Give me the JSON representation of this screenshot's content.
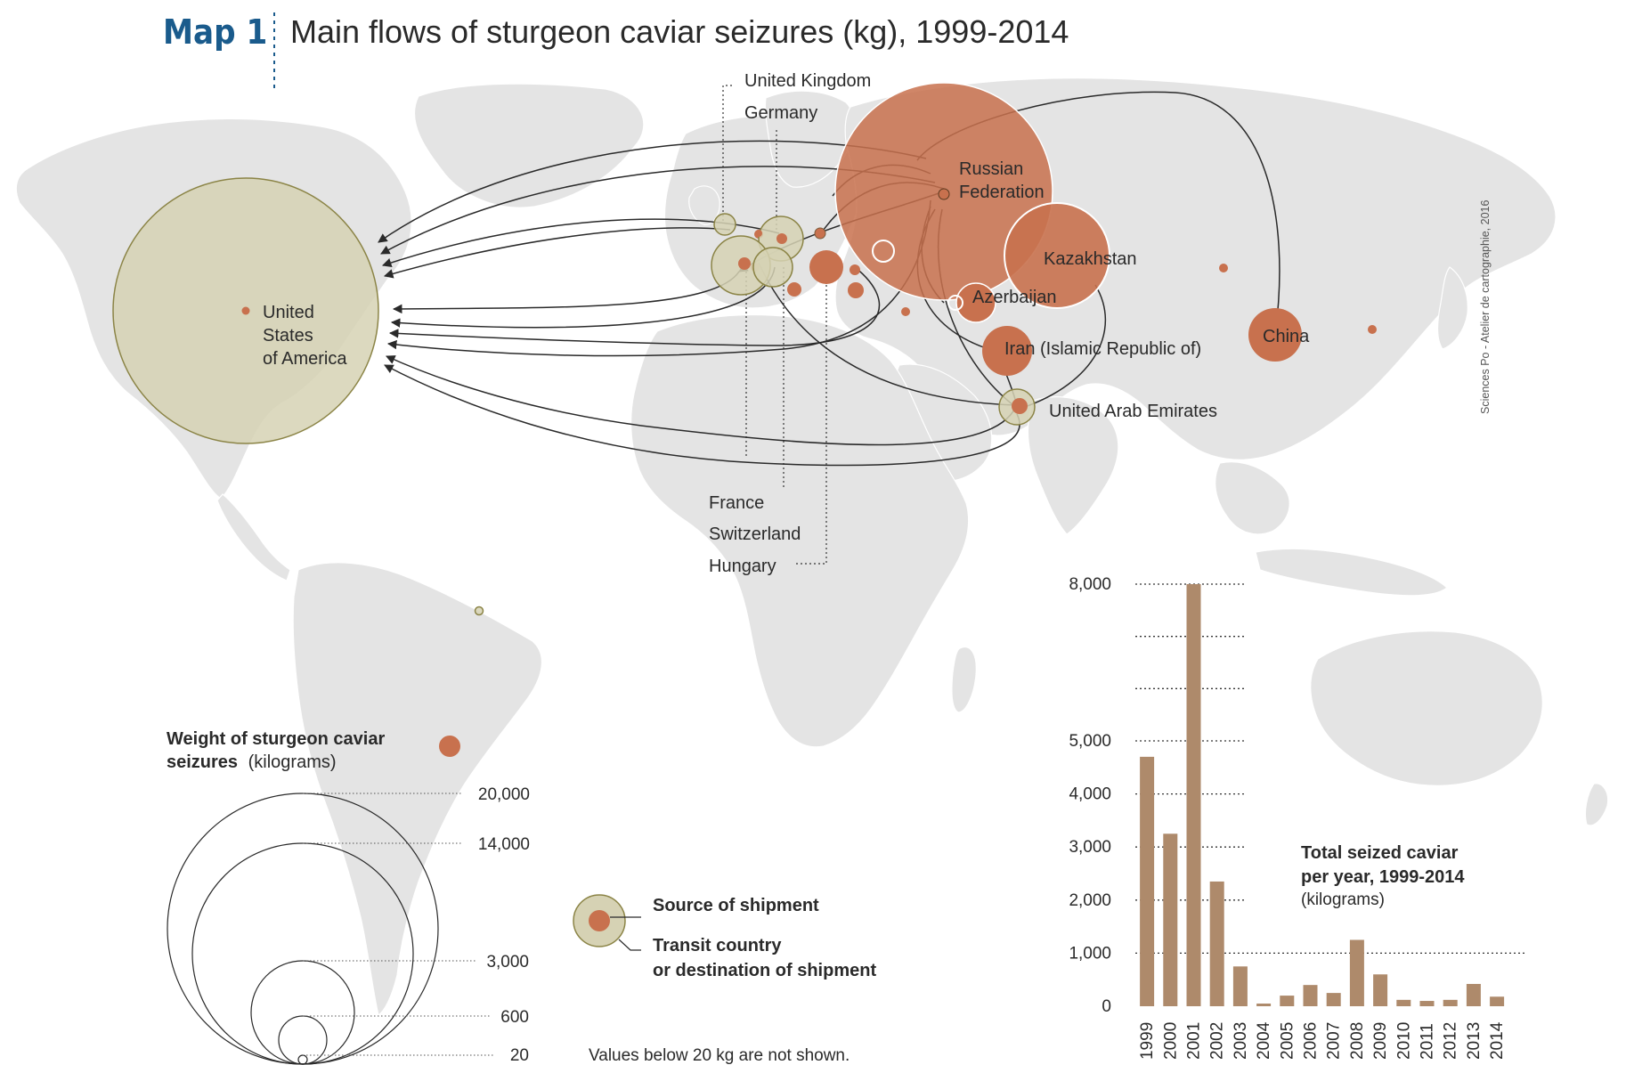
{
  "header": {
    "map_number": "Map 1",
    "title": "Main flows of sturgeon caviar seizures (kg), 1999-2014"
  },
  "credit": "Sciences Po - Atelier de cartographie, 2016",
  "countries": {
    "united_kingdom": "United Kingdom",
    "germany": "Germany",
    "russia_line1": "Russian",
    "russia_line2": "Federation",
    "kazakhstan": "Kazakhstan",
    "azerbaijan": "Azerbaijan",
    "iran": "Iran (Islamic Republic of)",
    "china": "China",
    "uae": "United Arab Emirates",
    "usa_line1": "United",
    "usa_line2": "States",
    "usa_line3": "of America",
    "france": "France",
    "switzerland": "Switzerland",
    "hungary": "Hungary"
  },
  "size_legend": {
    "title_bold_1": "Weight of sturgeon caviar",
    "title_bold_2": "seizures",
    "title_unit": "(kilograms)",
    "values": [
      "20,000",
      "14,000",
      "3,000",
      "600",
      "20"
    ]
  },
  "type_legend": {
    "source": "Source of shipment",
    "transit_line1": "Transit country",
    "transit_line2": "or destination of shipment",
    "note": "Values below 20 kg are not shown."
  },
  "colors": {
    "source": "#c8714e",
    "transit_fill": "#d6d2b4",
    "transit_stroke": "#8b8446",
    "land": "#e4e4e4",
    "bar": "#ae8a6b",
    "title_blue": "#1a5b8c"
  },
  "chart_data": {
    "type": "bar",
    "title_line1": "Total seized caviar",
    "title_line2": "per year, 1999-2014",
    "unit": "(kilograms)",
    "categories": [
      "1999",
      "2000",
      "2001",
      "2002",
      "2003",
      "2004",
      "2005",
      "2006",
      "2007",
      "2008",
      "2009",
      "2010",
      "2011",
      "2012",
      "2013",
      "2014"
    ],
    "values": [
      4700,
      3250,
      8000,
      2350,
      750,
      50,
      200,
      400,
      250,
      1250,
      600,
      120,
      100,
      120,
      420,
      180
    ],
    "y_ticks": [
      "0",
      "1,000",
      "2,000",
      "3,000",
      "4,000",
      "5,000",
      "8,000"
    ],
    "ylim": [
      0,
      8000
    ]
  }
}
